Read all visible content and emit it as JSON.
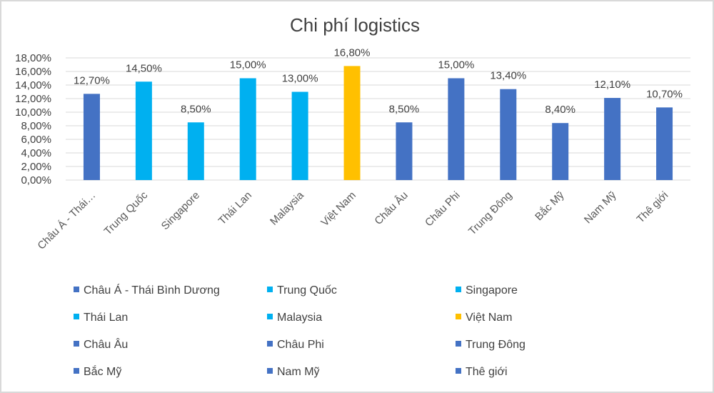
{
  "chart_data": {
    "type": "bar",
    "title": "Chi phí logistics",
    "categories": [
      "Châu Á - Thái…",
      "Trung Quốc",
      "Singapore",
      "Thái Lan",
      "Malaysia",
      "Việt Nam",
      "Châu Âu",
      "Châu Phi",
      "Trung Đông",
      "Bắc Mỹ",
      "Nam Mỹ",
      "Thê giới"
    ],
    "values": [
      12.7,
      14.5,
      8.5,
      15.0,
      13.0,
      16.8,
      8.5,
      15.0,
      13.4,
      8.4,
      12.1,
      10.7
    ],
    "data_labels": [
      "12,70%",
      "14,50%",
      "8,50%",
      "15,00%",
      "13,00%",
      "16,80%",
      "8,50%",
      "15,00%",
      "13,40%",
      "8,40%",
      "12,10%",
      "10,70%"
    ],
    "colors": [
      "#4472c4",
      "#00b0f0",
      "#00b0f0",
      "#00b0f0",
      "#00b0f0",
      "#ffc000",
      "#4472c4",
      "#4472c4",
      "#4472c4",
      "#4472c4",
      "#4472c4",
      "#4472c4"
    ],
    "ylim": [
      0,
      18
    ],
    "yticks": [
      0,
      2,
      4,
      6,
      8,
      10,
      12,
      14,
      16,
      18
    ],
    "ytick_labels": [
      "0,00%",
      "2,00%",
      "4,00%",
      "6,00%",
      "8,00%",
      "10,00%",
      "12,00%",
      "14,00%",
      "16,00%",
      "18,00%"
    ],
    "grid": true,
    "legend_position": "bottom",
    "legend": [
      "Châu Á - Thái Bình Dương",
      "Trung Quốc",
      "Singapore",
      "Thái Lan",
      "Malaysia",
      "Việt Nam",
      "Châu Âu",
      "Châu Phi",
      "Trung Đông",
      "Bắc Mỹ",
      "Nam Mỹ",
      "Thê giới"
    ]
  }
}
